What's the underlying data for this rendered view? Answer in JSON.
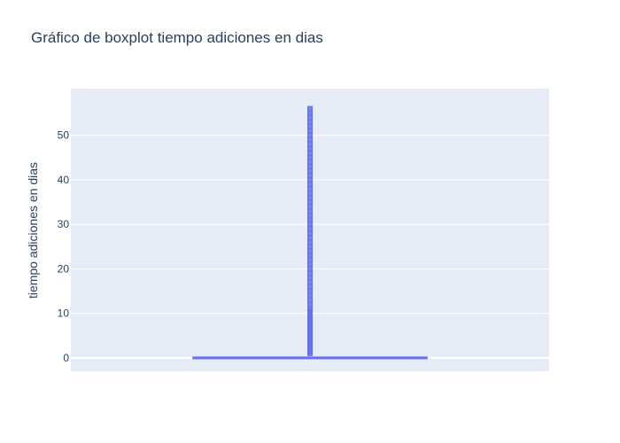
{
  "chart_data": {
    "type": "box",
    "title": "Gráfico de boxplot tiempo adiciones en dias",
    "xlabel": "",
    "ylabel": "tiempo adiciones en dias",
    "ylim": [
      -3,
      60.5
    ],
    "yticks": [
      0,
      10,
      20,
      30,
      40,
      50
    ],
    "grid": true,
    "series": [
      {
        "min": 0,
        "q1": 0,
        "median": 0,
        "q3": 0,
        "upper_fence": 0,
        "outliers": [
          1,
          1.5,
          2,
          2.5,
          3,
          3.5,
          4,
          4.5,
          5,
          5.5,
          6,
          6.5,
          7,
          7.5,
          8,
          8.5,
          9,
          9.5,
          10,
          10.5,
          11,
          12,
          13,
          14,
          15,
          16,
          17,
          18,
          19,
          20,
          21,
          22,
          23,
          24,
          25,
          26,
          27,
          28,
          29,
          30,
          31,
          32,
          33,
          34,
          35,
          36,
          37,
          38,
          39,
          40,
          41,
          42,
          43,
          44,
          45,
          46,
          47,
          48,
          49,
          50,
          51,
          52,
          53,
          54,
          55,
          56
        ]
      }
    ],
    "colors": {
      "box": "#636efa",
      "plot_bg": "#e5ecf6",
      "grid": "#ffffff",
      "text": "#2a3f5f"
    }
  }
}
